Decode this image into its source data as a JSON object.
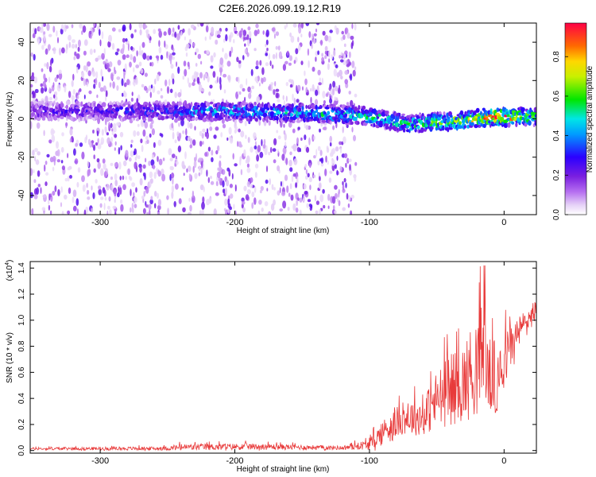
{
  "figure_title": "C2E6.2026.099.19.12.R19",
  "chart_data": [
    {
      "type": "heatmap",
      "title": "C2E6.2026.099.19.12.R19",
      "xlabel": "Height of straight line (km)",
      "ylabel": "Frequency (Hz)",
      "xlim": [
        -352,
        24
      ],
      "ylim": [
        -50,
        50
      ],
      "xticks": [
        -300,
        -200,
        -100,
        0
      ],
      "yticks": [
        -40,
        -20,
        0,
        20,
        40
      ],
      "grid": false,
      "colorbar": {
        "label": "Normalized spectral amplitude",
        "range": [
          0,
          0.97
        ],
        "ticks": [
          0.0,
          0.2,
          0.4,
          0.6,
          0.8
        ],
        "colormap": "rainbow"
      },
      "ridge": {
        "description_points": [
          {
            "x": -350,
            "y": 4
          },
          {
            "x": -300,
            "y": 4
          },
          {
            "x": -250,
            "y": 4
          },
          {
            "x": -200,
            "y": 4
          },
          {
            "x": -150,
            "y": 3
          },
          {
            "x": -110,
            "y": 2
          },
          {
            "x": -90,
            "y": 0
          },
          {
            "x": -70,
            "y": -3
          },
          {
            "x": -55,
            "y": -2
          },
          {
            "x": -30,
            "y": -1
          },
          {
            "x": -10,
            "y": 1
          },
          {
            "x": 0,
            "y": 1
          },
          {
            "x": 24,
            "y": 1
          }
        ],
        "peak_amplitude": [
          {
            "x": -350,
            "a": 0.25
          },
          {
            "x": -280,
            "a": 0.3
          },
          {
            "x": -220,
            "a": 0.45
          },
          {
            "x": -150,
            "a": 0.5
          },
          {
            "x": -100,
            "a": 0.55
          },
          {
            "x": -50,
            "a": 0.6
          },
          {
            "x": -20,
            "a": 0.85
          },
          {
            "x": 0,
            "a": 0.95
          },
          {
            "x": 24,
            "a": 0.6
          }
        ]
      },
      "noise_region": {
        "x_from": -352,
        "x_to": -110,
        "density": "high"
      }
    },
    {
      "type": "line",
      "xlabel": "Height of straight line (km)",
      "ylabel": "SNR (10 * v/v)",
      "y_multiplier": "(x10",
      "y_multiplier_exp": "4",
      "y_multiplier_close": ")",
      "xlim": [
        -352,
        24
      ],
      "ylim": [
        -0.02,
        1.45
      ],
      "xticks": [
        -300,
        -200,
        -100,
        0
      ],
      "yticks": [
        0.0,
        0.2,
        0.4,
        0.6,
        0.8,
        1.0,
        1.2,
        1.4
      ],
      "grid": false,
      "series": [
        {
          "name": "SNR",
          "color": "#e83a3a",
          "envelope": [
            {
              "x": -352,
              "base": 0.01,
              "amp": 0.02
            },
            {
              "x": -250,
              "base": 0.01,
              "amp": 0.03
            },
            {
              "x": -240,
              "base": 0.015,
              "amp": 0.05
            },
            {
              "x": -190,
              "base": 0.02,
              "amp": 0.05
            },
            {
              "x": -120,
              "base": 0.015,
              "amp": 0.03
            },
            {
              "x": -100,
              "base": 0.03,
              "amp": 0.08
            },
            {
              "x": -90,
              "base": 0.1,
              "amp": 0.2
            },
            {
              "x": -75,
              "base": 0.2,
              "amp": 0.25
            },
            {
              "x": -60,
              "base": 0.2,
              "amp": 0.3
            },
            {
              "x": -50,
              "base": 0.3,
              "amp": 0.45
            },
            {
              "x": -40,
              "base": 0.35,
              "amp": 0.55
            },
            {
              "x": -30,
              "base": 0.4,
              "amp": 0.6
            },
            {
              "x": -20,
              "base": 0.5,
              "amp": 0.8
            },
            {
              "x": -15,
              "base": 0.55,
              "amp": 0.9
            },
            {
              "x": -10,
              "base": 0.45,
              "amp": 0.55
            },
            {
              "x": 0,
              "base": 0.6,
              "amp": 0.45
            },
            {
              "x": 10,
              "base": 0.85,
              "amp": 0.25
            },
            {
              "x": 24,
              "base": 1.05,
              "amp": 0.18
            }
          ]
        }
      ]
    }
  ]
}
